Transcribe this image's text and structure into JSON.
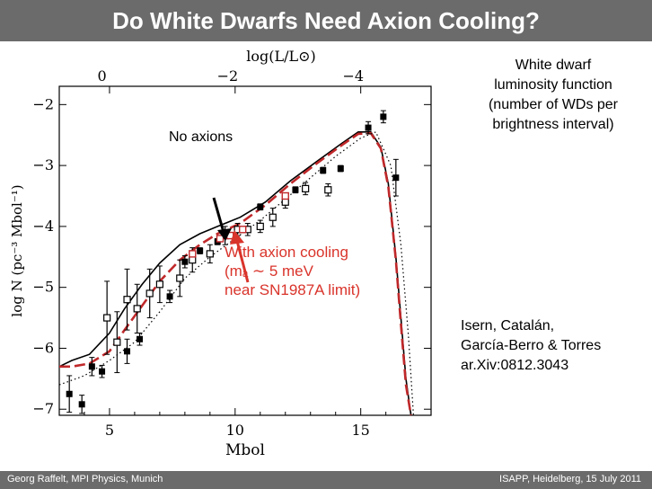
{
  "slide": {
    "title": "Do White Dwarfs Need Axion Cooling?",
    "caption": "White dwarf\nluminosity function\n(number of WDs per\nbrightness interval)",
    "citation": "Isern, Catalán,\nGarcía-Berro & Torres\nar.Xiv:0812.3043",
    "no_axions_label": "No axions",
    "axion_label": "With axion cooling\n(mₐ ∼ 5 meV\n near SN1987A limit)",
    "footer_left": "Georg Raffelt, MPI Physics, Munich",
    "footer_right": "ISAPP, Heidelberg, 15 July 2011"
  },
  "chart_data": {
    "type": "scatter",
    "xlabel": "M_bol",
    "ylabel": "log N  (pc⁻³ M_bol⁻¹)",
    "top_axis_label": "log(L/L⊙)",
    "xlim": [
      3,
      17.8
    ],
    "ylim": [
      -7.1,
      -1.7
    ],
    "x_ticks": [
      5,
      10,
      15
    ],
    "y_ticks": [
      -7,
      -6,
      -5,
      -4,
      -3,
      -2
    ],
    "top_ticks": [
      {
        "label": "0",
        "x": 4.7
      },
      {
        "label": "−2",
        "x": 9.7
      },
      {
        "label": "−4",
        "x": 14.7
      }
    ],
    "series": [
      {
        "kind": "filled",
        "points": [
          {
            "x": 3.4,
            "y": -6.75,
            "err": 0.3
          },
          {
            "x": 3.9,
            "y": -6.92,
            "err": 0.15
          },
          {
            "x": 4.3,
            "y": -6.3,
            "err": 0.15
          },
          {
            "x": 4.7,
            "y": -6.38,
            "err": 0.1
          },
          {
            "x": 5.7,
            "y": -6.05,
            "err": 0.2
          },
          {
            "x": 6.2,
            "y": -5.85,
            "err": 0.1
          },
          {
            "x": 7.4,
            "y": -5.15,
            "err": 0.1
          },
          {
            "x": 8.0,
            "y": -4.58,
            "err": 0.1
          },
          {
            "x": 8.6,
            "y": -4.4,
            "err": 0.05
          },
          {
            "x": 9.3,
            "y": -4.25,
            "err": 0.05
          },
          {
            "x": 11.0,
            "y": -3.68,
            "err": 0.05
          },
          {
            "x": 12.4,
            "y": -3.4,
            "err": 0.05
          },
          {
            "x": 13.5,
            "y": -3.08,
            "err": 0.05
          },
          {
            "x": 14.2,
            "y": -3.05,
            "err": 0.05
          },
          {
            "x": 15.3,
            "y": -2.38,
            "err": 0.1
          },
          {
            "x": 15.9,
            "y": -2.2,
            "err": 0.1
          },
          {
            "x": 16.4,
            "y": -3.2,
            "err": 0.3
          }
        ]
      },
      {
        "kind": "open",
        "points": [
          {
            "x": 4.9,
            "y": -5.5,
            "err": 0.6
          },
          {
            "x": 5.3,
            "y": -5.9,
            "err": 0.5
          },
          {
            "x": 5.7,
            "y": -5.2,
            "err": 0.5
          },
          {
            "x": 6.1,
            "y": -5.35,
            "err": 0.4
          },
          {
            "x": 6.6,
            "y": -5.1,
            "err": 0.4
          },
          {
            "x": 7.0,
            "y": -4.95,
            "err": 0.3
          },
          {
            "x": 7.8,
            "y": -4.85,
            "err": 0.3
          },
          {
            "x": 8.3,
            "y": -4.55,
            "err": 0.2
          },
          {
            "x": 9.0,
            "y": -4.45,
            "err": 0.15
          },
          {
            "x": 9.6,
            "y": -4.15,
            "err": 0.15
          },
          {
            "x": 10.1,
            "y": -4.05,
            "err": 0.1
          },
          {
            "x": 10.5,
            "y": -4.05,
            "err": 0.1
          },
          {
            "x": 11.0,
            "y": -4.0,
            "err": 0.1
          },
          {
            "x": 11.5,
            "y": -3.85,
            "err": 0.15
          },
          {
            "x": 12.0,
            "y": -3.6,
            "err": 0.1
          },
          {
            "x": 12.8,
            "y": -3.38,
            "err": 0.1
          },
          {
            "x": 13.7,
            "y": -3.4,
            "err": 0.1
          }
        ]
      },
      {
        "kind": "red-open",
        "points": [
          {
            "x": 8.3,
            "y": -4.45
          },
          {
            "x": 9.4,
            "y": -4.2
          },
          {
            "x": 9.8,
            "y": -4.15
          },
          {
            "x": 10.3,
            "y": -4.05
          },
          {
            "x": 12.0,
            "y": -3.5
          }
        ]
      },
      {
        "name": "No axions",
        "kind": "curve-black",
        "x": [
          3.0,
          3.5,
          4.2,
          5.0,
          5.6,
          6.3,
          7.0,
          7.8,
          8.6,
          9.3,
          10.2,
          11.2,
          12.2,
          13.2,
          14.2,
          14.9,
          15.4,
          15.8,
          16.1,
          16.4,
          16.6,
          16.8,
          17.0
        ],
        "y": [
          -6.3,
          -6.2,
          -6.1,
          -5.75,
          -5.35,
          -4.95,
          -4.6,
          -4.3,
          -4.12,
          -4.0,
          -3.85,
          -3.6,
          -3.25,
          -2.95,
          -2.65,
          -2.45,
          -2.45,
          -2.7,
          -3.3,
          -4.5,
          -5.5,
          -6.5,
          -7.1
        ]
      },
      {
        "name": "With axion cooling",
        "kind": "curve-red-dash",
        "x": [
          3.0,
          3.5,
          4.2,
          5.0,
          5.6,
          6.3,
          7.0,
          7.8,
          8.6,
          9.3,
          10.2,
          11.2,
          12.2,
          13.2,
          14.2,
          14.9,
          15.4,
          15.8,
          16.1,
          16.4,
          16.6,
          16.8,
          17.0
        ],
        "y": [
          -6.3,
          -6.3,
          -6.25,
          -6.05,
          -5.7,
          -5.3,
          -4.9,
          -4.55,
          -4.3,
          -4.12,
          -3.95,
          -3.65,
          -3.3,
          -2.98,
          -2.68,
          -2.48,
          -2.47,
          -2.72,
          -3.35,
          -4.55,
          -5.6,
          -6.6,
          -7.1
        ]
      },
      {
        "kind": "curve-dotted",
        "x": [
          3.0,
          4.0,
          5.0,
          6.0,
          7.0,
          8.0,
          9.0,
          10.0,
          11.0,
          12.0,
          13.0,
          14.0,
          15.0,
          15.6,
          16.2,
          16.6,
          16.9,
          17.1
        ],
        "y": [
          -6.6,
          -6.45,
          -6.2,
          -5.9,
          -5.4,
          -4.85,
          -4.5,
          -4.2,
          -3.9,
          -3.55,
          -3.2,
          -2.85,
          -2.55,
          -2.45,
          -3.0,
          -4.3,
          -5.8,
          -7.1
        ]
      }
    ]
  }
}
